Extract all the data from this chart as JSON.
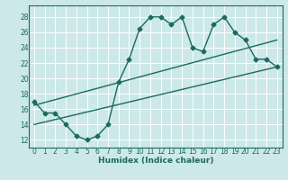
{
  "xlabel": "Humidex (Indice chaleur)",
  "bg_color": "#cce8e8",
  "grid_color": "#ffffff",
  "line_color": "#1a6b5e",
  "xlim": [
    -0.5,
    23.5
  ],
  "ylim": [
    11,
    29.5
  ],
  "yticks": [
    12,
    14,
    16,
    18,
    20,
    22,
    24,
    26,
    28
  ],
  "xticks": [
    0,
    1,
    2,
    3,
    4,
    5,
    6,
    7,
    8,
    9,
    10,
    11,
    12,
    13,
    14,
    15,
    16,
    17,
    18,
    19,
    20,
    21,
    22,
    23
  ],
  "curve1_x": [
    0,
    1,
    2,
    3,
    4,
    5,
    6,
    7,
    8,
    9,
    10,
    11,
    12,
    13,
    14,
    15,
    16,
    17,
    18,
    19,
    20,
    21,
    22,
    23
  ],
  "curve1_y": [
    17,
    15.5,
    15.5,
    14,
    12.5,
    12,
    12.5,
    14,
    19.5,
    22.5,
    26.5,
    28,
    28,
    27,
    28,
    24,
    23.5,
    27,
    28,
    26,
    25,
    22.5,
    22.5,
    21.5
  ],
  "curve2_x": [
    0,
    23
  ],
  "curve2_y": [
    14,
    21.5
  ],
  "curve3_x": [
    0,
    23
  ],
  "curve3_y": [
    16.5,
    25
  ],
  "marker_size": 2.5,
  "line_width": 1.0,
  "tick_fontsize": 5.5,
  "xlabel_fontsize": 6.5
}
